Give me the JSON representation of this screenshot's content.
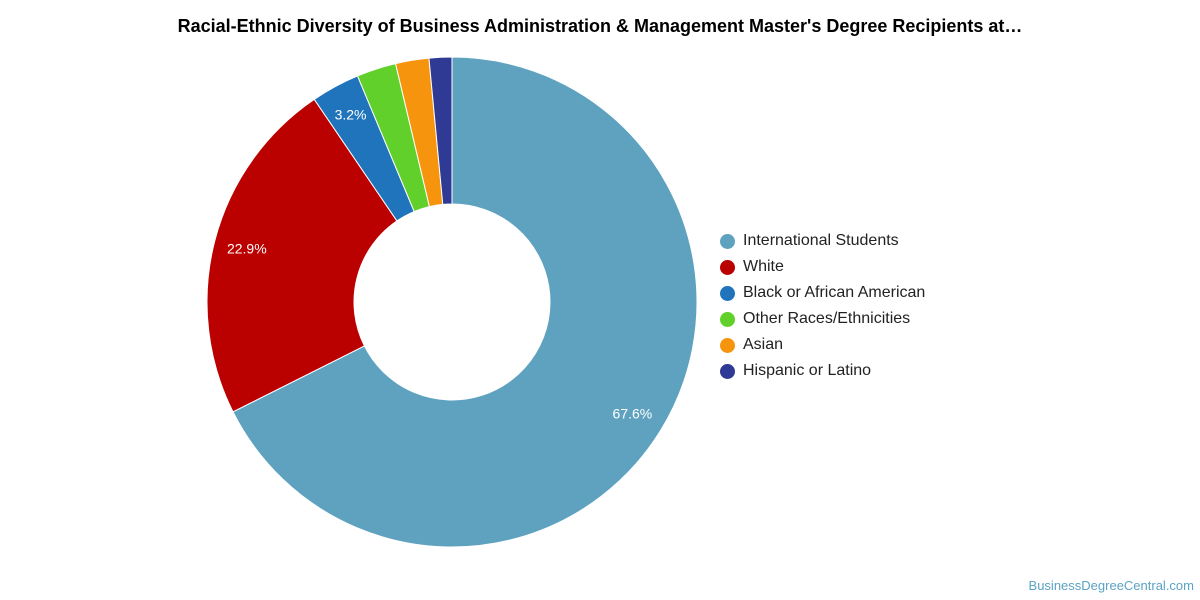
{
  "chart_data": {
    "type": "pie",
    "title": "Racial-Ethnic Diversity of Business Administration & Management Master's Degree Recipients at…",
    "donut": true,
    "legend_position": "right",
    "slices": [
      {
        "name": "International Students",
        "value": 67.6,
        "label": "67.6%",
        "color": "#5ea2c0"
      },
      {
        "name": "White",
        "value": 22.9,
        "label": "22.9%",
        "color": "#bb0000"
      },
      {
        "name": "Black or African American",
        "value": 3.2,
        "label": "3.2%",
        "color": "#2074bc"
      },
      {
        "name": "Other Races/Ethnicities",
        "value": 2.6,
        "label": "",
        "color": "#62d02a"
      },
      {
        "name": "Asian",
        "value": 2.2,
        "label": "",
        "color": "#f7940e"
      },
      {
        "name": "Hispanic or Latino",
        "value": 1.5,
        "label": "",
        "color": "#2e3a94"
      }
    ]
  },
  "credits": "BusinessDegreeCentral.com"
}
